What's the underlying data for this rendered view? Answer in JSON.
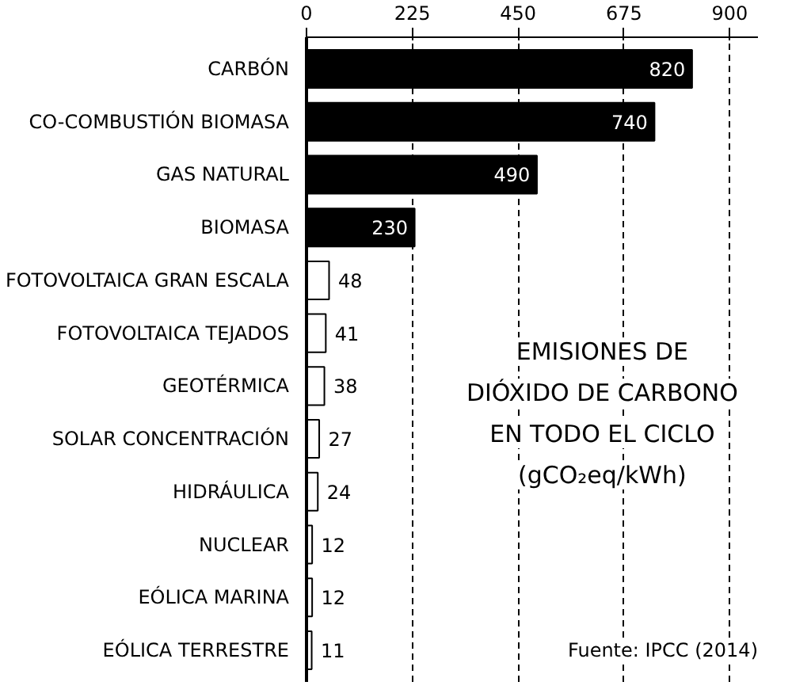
{
  "chart_data": {
    "type": "bar",
    "orientation": "horizontal",
    "title": "EMISIONES DE DIÓXIDO DE CARBONO EN TODO EL CICLO (gCO₂eq/kWh)",
    "categories": [
      "CARBÓN",
      "CO-COMBUSTIÓN BIOMASA",
      "GAS NATURAL",
      "BIOMASA",
      "FOTOVOLTAICA GRAN ESCALA",
      "FOTOVOLTAICA TEJADOS",
      "GEOTÉRMICA",
      "SOLAR CONCENTRACIÓN",
      "HIDRÁULICA",
      "NUCLEAR",
      "EÓLICA MARINA",
      "EÓLICA TERRESTRE"
    ],
    "values": [
      820,
      740,
      490,
      230,
      48,
      41,
      38,
      27,
      24,
      12,
      12,
      11
    ],
    "colors": [
      "#000000",
      "#000000",
      "#000000",
      "#000000",
      "#ffffff",
      "#ffffff",
      "#ffffff",
      "#ffffff",
      "#ffffff",
      "#ffffff",
      "#ffffff",
      "#ffffff"
    ],
    "xlim": [
      0,
      960
    ],
    "xticks": [
      0,
      225,
      450,
      675,
      900
    ],
    "grid": "x",
    "data_labels": true,
    "annotations": [
      "Fuente: IPCC (2014)"
    ]
  }
}
